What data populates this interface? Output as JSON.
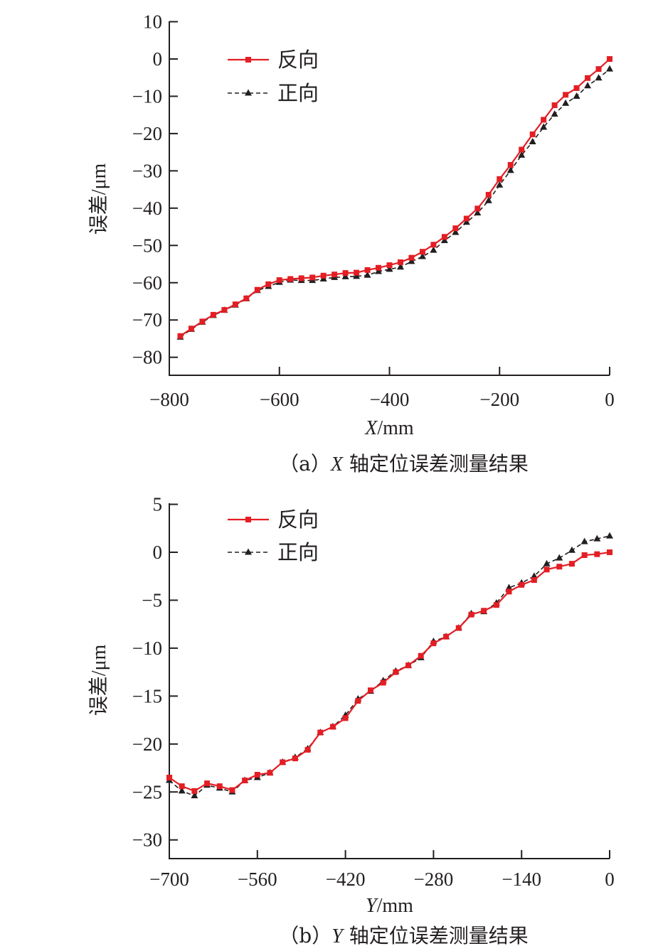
{
  "chart_data": [
    {
      "type": "line",
      "caption": "（a）X 轴定位误差测量结果",
      "caption_prefix": "（a）",
      "caption_var": "X",
      "caption_suffix": " 轴定位误差测量结果",
      "xlabel_var": "X",
      "xlabel_unit": "/mm",
      "ylabel": "误差/μm",
      "xlim": [
        -800,
        0
      ],
      "ylim": [
        -85,
        10
      ],
      "xticks": [
        -800,
        -600,
        -400,
        -200,
        0
      ],
      "xtick_labels": [
        "−800",
        "−600",
        "−400",
        "−200",
        "0"
      ],
      "yticks": [
        10,
        0,
        -10,
        -20,
        -30,
        -40,
        -50,
        -60,
        -70,
        -80
      ],
      "ytick_labels": [
        "10",
        "0",
        "−10",
        "−20",
        "−30",
        "−40",
        "−50",
        "−60",
        "−70",
        "−80"
      ],
      "legend_position": "top-left",
      "series": [
        {
          "name": "反向",
          "color": "#e31e24",
          "marker": "square",
          "style": "solid",
          "x": [
            -780,
            -760,
            -740,
            -720,
            -700,
            -680,
            -660,
            -640,
            -620,
            -600,
            -580,
            -560,
            -540,
            -520,
            -500,
            -480,
            -460,
            -440,
            -420,
            -400,
            -380,
            -360,
            -340,
            -320,
            -300,
            -280,
            -260,
            -240,
            -220,
            -200,
            -180,
            -160,
            -140,
            -120,
            -100,
            -80,
            -60,
            -40,
            -20,
            0
          ],
          "y": [
            -74.3,
            -72.3,
            -70.4,
            -68.6,
            -67.3,
            -65.8,
            -64.2,
            -61.9,
            -60.4,
            -59.3,
            -59.0,
            -58.8,
            -58.6,
            -58.1,
            -57.8,
            -57.4,
            -57.3,
            -56.6,
            -56.0,
            -55.3,
            -54.5,
            -53.3,
            -51.7,
            -49.8,
            -47.7,
            -45.4,
            -42.8,
            -40.1,
            -36.4,
            -32.2,
            -28.4,
            -24.3,
            -20.2,
            -16.3,
            -12.4,
            -9.6,
            -7.8,
            -5.1,
            -2.7,
            0.0
          ]
        },
        {
          "name": "正向",
          "color": "#231f20",
          "marker": "triangle",
          "style": "dashed",
          "x": [
            -780,
            -760,
            -740,
            -720,
            -700,
            -680,
            -660,
            -640,
            -620,
            -600,
            -580,
            -560,
            -540,
            -520,
            -500,
            -480,
            -460,
            -440,
            -420,
            -400,
            -380,
            -360,
            -340,
            -320,
            -300,
            -280,
            -260,
            -240,
            -220,
            -200,
            -180,
            -160,
            -140,
            -120,
            -100,
            -80,
            -60,
            -40,
            -20,
            0
          ],
          "y": [
            -74.6,
            -72.5,
            -70.6,
            -68.8,
            -67.4,
            -66.0,
            -64.3,
            -62.1,
            -61.0,
            -59.9,
            -59.3,
            -59.4,
            -59.4,
            -59.0,
            -58.6,
            -58.4,
            -58.3,
            -58.0,
            -57.0,
            -56.4,
            -55.8,
            -54.3,
            -53.0,
            -51.3,
            -48.7,
            -46.5,
            -43.8,
            -41.3,
            -38.0,
            -33.8,
            -29.9,
            -25.8,
            -22.2,
            -18.3,
            -14.8,
            -11.9,
            -10.0,
            -7.2,
            -5.1,
            -2.7
          ]
        }
      ]
    },
    {
      "type": "line",
      "caption": "（b）Y 轴定位误差测量结果",
      "caption_prefix": "（b）",
      "caption_var": "Y",
      "caption_suffix": " 轴定位误差测量结果",
      "xlabel_var": "Y",
      "xlabel_unit": "/mm",
      "ylabel": "误差/μm",
      "xlim": [
        -700,
        0
      ],
      "ylim": [
        -32,
        5
      ],
      "xticks": [
        -700,
        -560,
        -420,
        -280,
        -140,
        0
      ],
      "xtick_labels": [
        "−700",
        "−560",
        "−420",
        "−280",
        "−140",
        "0"
      ],
      "yticks": [
        5,
        0,
        -5,
        -10,
        -15,
        -20,
        -25,
        -30
      ],
      "ytick_labels": [
        "5",
        "0",
        "−5",
        "−10",
        "−15",
        "−20",
        "−25",
        "−30"
      ],
      "legend_position": "top-left",
      "series": [
        {
          "name": "反向",
          "color": "#e31e24",
          "marker": "square",
          "style": "solid",
          "x": [
            -700,
            -680,
            -660,
            -640,
            -620,
            -600,
            -580,
            -560,
            -540,
            -520,
            -500,
            -480,
            -460,
            -440,
            -420,
            -400,
            -380,
            -360,
            -340,
            -320,
            -300,
            -280,
            -260,
            -240,
            -220,
            -200,
            -180,
            -160,
            -140,
            -120,
            -100,
            -80,
            -60,
            -40,
            -20,
            0
          ],
          "y": [
            -23.5,
            -24.4,
            -24.9,
            -24.1,
            -24.4,
            -24.8,
            -23.8,
            -23.2,
            -23.0,
            -21.9,
            -21.5,
            -20.6,
            -18.8,
            -18.2,
            -17.3,
            -15.5,
            -14.4,
            -13.6,
            -12.5,
            -11.8,
            -10.8,
            -9.5,
            -8.8,
            -7.9,
            -6.5,
            -6.1,
            -5.5,
            -4.1,
            -3.4,
            -2.9,
            -1.8,
            -1.5,
            -1.2,
            -0.3,
            -0.2,
            0.0
          ]
        },
        {
          "name": "正向",
          "color": "#231f20",
          "marker": "triangle",
          "style": "dashed",
          "x": [
            -700,
            -680,
            -660,
            -640,
            -620,
            -600,
            -580,
            -560,
            -540,
            -520,
            -500,
            -480,
            -460,
            -440,
            -420,
            -400,
            -380,
            -360,
            -340,
            -320,
            -300,
            -280,
            -260,
            -240,
            -220,
            -200,
            -180,
            -160,
            -140,
            -120,
            -100,
            -80,
            -60,
            -40,
            -20,
            0
          ],
          "y": [
            -23.8,
            -24.9,
            -25.4,
            -24.3,
            -24.6,
            -25.0,
            -23.8,
            -23.5,
            -23.0,
            -21.9,
            -21.4,
            -20.5,
            -18.8,
            -18.2,
            -17.0,
            -15.3,
            -14.5,
            -13.4,
            -12.4,
            -11.8,
            -11.0,
            -9.3,
            -8.8,
            -7.9,
            -6.4,
            -6.2,
            -5.3,
            -3.7,
            -3.2,
            -2.5,
            -1.2,
            -0.6,
            0.2,
            1.1,
            1.4,
            1.7
          ]
        }
      ]
    }
  ]
}
